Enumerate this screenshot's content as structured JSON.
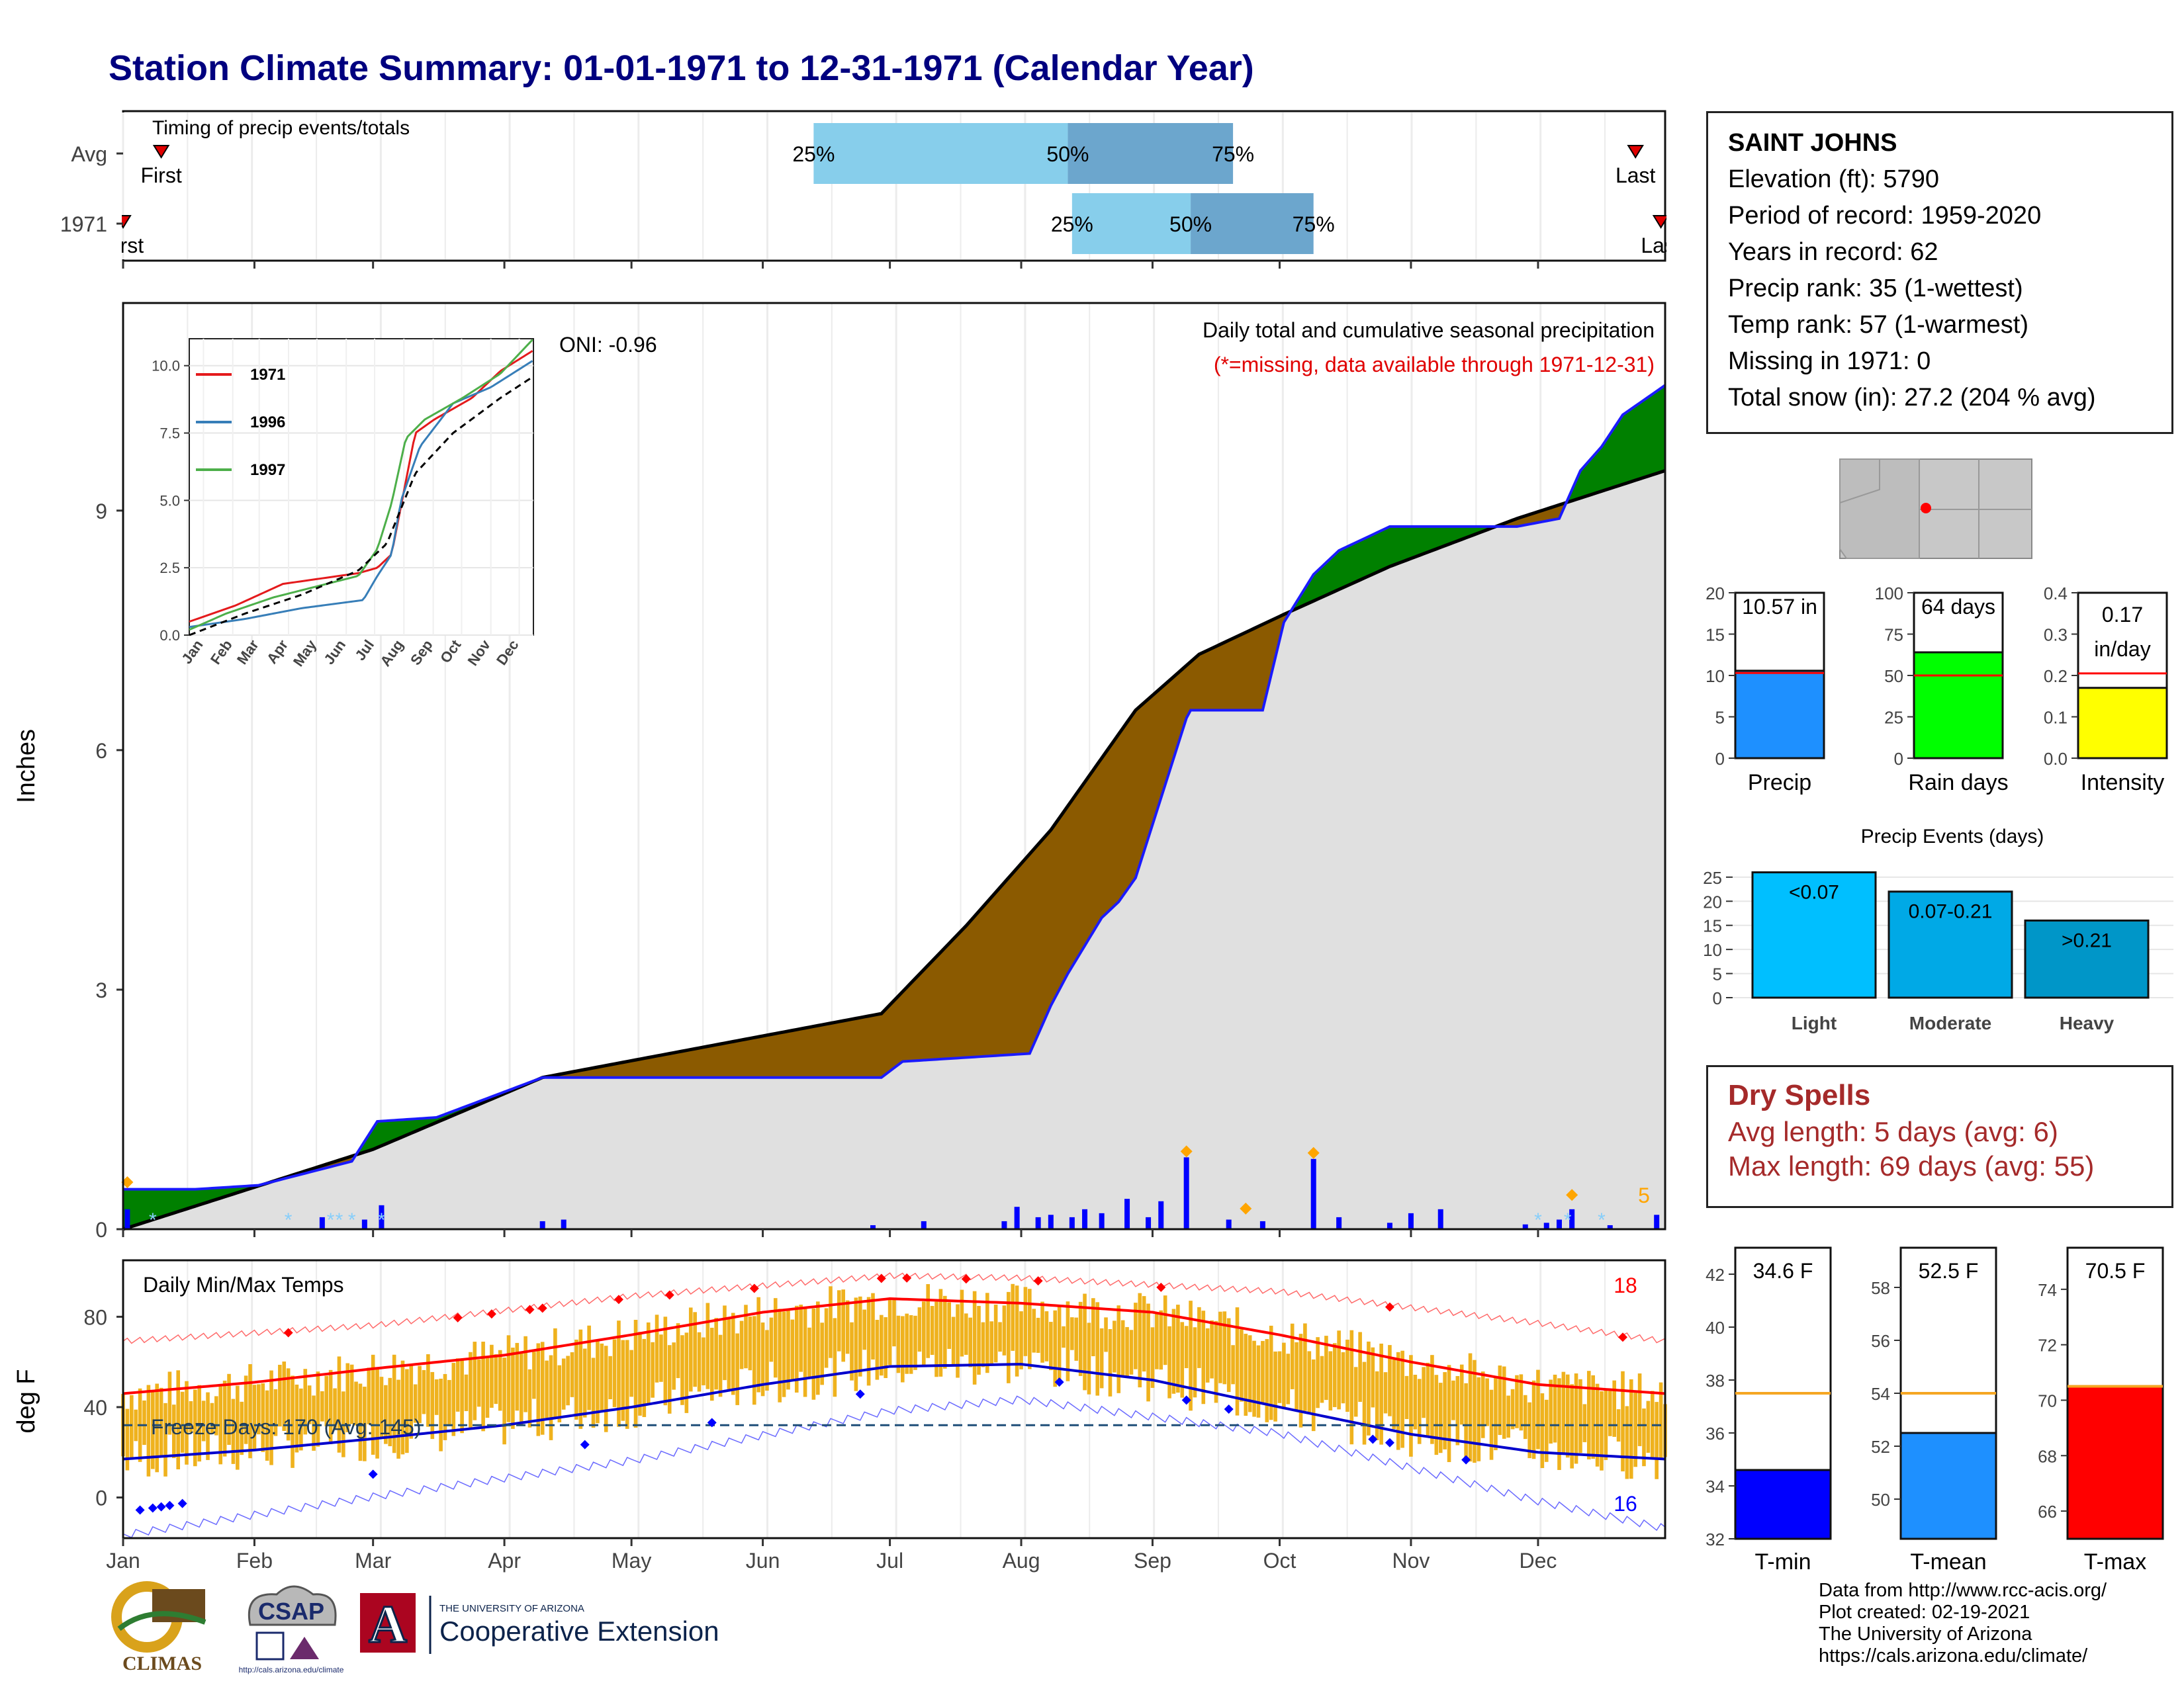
{
  "header": {
    "title": "Station Climate Summary: 01-01-1971 to 12-31-1971 (Calendar Year)"
  },
  "timing": {
    "title": "Timing of precip events/totals",
    "rows": [
      {
        "label": "Avg",
        "first_label": "First",
        "last_label": "Last",
        "first_doy": 10,
        "last_doy": 358,
        "p25": 164,
        "p50": 224,
        "p75": 263,
        "pct_labels": [
          "25%",
          "50%",
          "75%"
        ]
      },
      {
        "label": "1971",
        "first_label": "First",
        "last_label": "Last",
        "first_doy": 1,
        "last_doy": 364,
        "p25": 225,
        "p50": 253,
        "p75": 282,
        "pct_labels": [
          "25%",
          "50%",
          "75%"
        ]
      }
    ]
  },
  "info": {
    "station": "SAINT JOHNS",
    "lines": [
      "Elevation (ft): 5790",
      "Period of record: 1959-2020",
      "Years in record: 62",
      "Precip rank: 35 (1-wettest)",
      "Temp rank: 57 (1-warmest)",
      "Missing in 1971: 0",
      "Total snow (in): 27.2 (204 % avg)"
    ]
  },
  "precip_panel": {
    "ylabel": "Inches",
    "oni": "ONI: -0.96",
    "note1": "Daily total and cumulative seasonal precipitation",
    "note2": "(*=missing, data available through 1971-12-31)",
    "corner_label": "5",
    "yticks": [
      0,
      3,
      6,
      9
    ],
    "ylim": [
      0,
      11.6
    ]
  },
  "temp_panel": {
    "ylabel": "deg F",
    "title": "Daily Min/Max Temps",
    "freeze": "Freeze Days: 170 (Avg: 145)",
    "max_count": "18",
    "min_count": "16",
    "yticks": [
      0,
      40,
      80
    ],
    "ylim": [
      -18,
      105
    ]
  },
  "months": [
    "Jan",
    "Feb",
    "Mar",
    "Apr",
    "May",
    "Jun",
    "Jul",
    "Aug",
    "Sep",
    "Oct",
    "Nov",
    "Dec"
  ],
  "inset": {
    "yticks": [
      "0.0",
      "2.5",
      "5.0",
      "7.5",
      "10.0"
    ],
    "legend": [
      "1971",
      "1996",
      "1997"
    ],
    "colors": [
      "#e41a1c",
      "#377eb8",
      "#4daf4a"
    ]
  },
  "gauges": [
    {
      "label": "Precip",
      "value_label": "10.57 in",
      "value": 10.57,
      "avg": 10.3,
      "ymax": 20,
      "ticks": [
        "0",
        "5",
        "10",
        "15",
        "20"
      ],
      "color": "#1e90ff"
    },
    {
      "label": "Rain days",
      "value_label": "64 days",
      "value": 64,
      "avg": 50,
      "ymax": 100,
      "ticks": [
        "0",
        "25",
        "50",
        "75",
        "100"
      ],
      "color": "#00ff00"
    },
    {
      "label": "Intensity",
      "value_label": "0.17 in/day",
      "value": 0.17,
      "avg": 0.205,
      "ymax": 0.4,
      "ticks": [
        "0.0",
        "0.1",
        "0.2",
        "0.3",
        "0.4"
      ],
      "color": "#ffff00"
    }
  ],
  "events": {
    "title": "Precip Events (days)",
    "bars": [
      {
        "label": "Light",
        "tag": "<0.07",
        "value": 26,
        "color": "#00bfff"
      },
      {
        "label": "Moderate",
        "tag": "0.07-0.21",
        "value": 22,
        "color": "#00a9e6"
      },
      {
        "label": "Heavy",
        "tag": ">0.21",
        "value": 16,
        "color": "#0096c8"
      }
    ],
    "ticks": [
      "0",
      "5",
      "10",
      "15",
      "20",
      "25"
    ]
  },
  "dry": {
    "title": "Dry Spells",
    "avg": "Avg length: 5 days (avg: 6)",
    "max": "Max length: 69 days (avg: 55)"
  },
  "temp_gauges": [
    {
      "label": "T-min",
      "value_label": "34.6 F",
      "value": 34.6,
      "avg": 37.5,
      "ymin": 32,
      "ymax": 43,
      "ticks": [
        "32",
        "34",
        "36",
        "38",
        "40",
        "42"
      ],
      "color": "#0000ff"
    },
    {
      "label": "T-mean",
      "value_label": "52.5 F",
      "value": 52.5,
      "avg": 54.0,
      "ymin": 48.5,
      "ymax": 59.5,
      "ticks": [
        "50",
        "52",
        "54",
        "56",
        "58"
      ],
      "color": "#1e90ff"
    },
    {
      "label": "T-max",
      "value_label": "70.5 F",
      "value": 70.5,
      "avg": 70.5,
      "ymin": 65,
      "ymax": 75.5,
      "ticks": [
        "66",
        "68",
        "70",
        "72",
        "74"
      ],
      "color": "#ff0000"
    }
  ],
  "credits": [
    "Data from http://www.rcc-acis.org/",
    "Plot created: 02-19-2021",
    "The University of Arizona",
    "https://cals.arizona.edu/climate/"
  ],
  "logos": {
    "climas": "CLIMAS",
    "csap": "CSAP",
    "csap_url": "http://cals.arizona.edu/climate",
    "ua_small": "THE UNIVERSITY OF ARIZONA",
    "ua_big": "Cooperative Extension",
    "ua_letter": "A"
  },
  "chart_data": [
    {
      "type": "area",
      "title": "Daily total and cumulative seasonal precipitation",
      "ylabel": "Inches",
      "ylim": [
        0,
        11.6
      ],
      "series": [
        {
          "name": "1971",
          "knots_doy": [
            1,
            18,
            33,
            55,
            61,
            75,
            100,
            120,
            150,
            180,
            185,
            215,
            220,
            224,
            232,
            236,
            240,
            252,
            253,
            262,
            270,
            275,
            282,
            288,
            300,
            330,
            340,
            345,
            350,
            355,
            365
          ],
          "knots_value": [
            0.5,
            0.5,
            0.55,
            0.85,
            1.35,
            1.4,
            1.9,
            1.9,
            1.9,
            1.9,
            2.1,
            2.2,
            2.8,
            3.2,
            3.9,
            4.1,
            4.4,
            6.4,
            6.5,
            6.5,
            6.5,
            7.6,
            8.2,
            8.5,
            8.8,
            8.8,
            8.9,
            9.5,
            9.8,
            10.2,
            10.57
          ]
        },
        {
          "name": "Avg",
          "knots_doy": [
            1,
            60,
            100,
            150,
            180,
            200,
            220,
            240,
            255,
            275,
            300,
            330,
            365
          ],
          "knots_value": [
            0.0,
            1.0,
            1.9,
            2.4,
            2.7,
            3.8,
            5.0,
            6.5,
            7.2,
            7.7,
            8.3,
            8.9,
            9.5
          ]
        }
      ],
      "daily_bars": [
        {
          "doy": 2,
          "value": 0.25
        },
        {
          "doy": 48,
          "value": 0.15
        },
        {
          "doy": 58,
          "value": 0.12
        },
        {
          "doy": 62,
          "value": 0.3
        },
        {
          "doy": 100,
          "value": 0.1
        },
        {
          "doy": 105,
          "value": 0.12
        },
        {
          "doy": 178,
          "value": 0.05
        },
        {
          "doy": 190,
          "value": 0.1
        },
        {
          "doy": 209,
          "value": 0.1
        },
        {
          "doy": 212,
          "value": 0.28
        },
        {
          "doy": 217,
          "value": 0.15
        },
        {
          "doy": 220,
          "value": 0.18
        },
        {
          "doy": 225,
          "value": 0.15
        },
        {
          "doy": 228,
          "value": 0.25
        },
        {
          "doy": 232,
          "value": 0.2
        },
        {
          "doy": 238,
          "value": 0.38
        },
        {
          "doy": 243,
          "value": 0.15
        },
        {
          "doy": 246,
          "value": 0.35
        },
        {
          "doy": 252,
          "value": 0.9
        },
        {
          "doy": 262,
          "value": 0.12
        },
        {
          "doy": 270,
          "value": 0.1
        },
        {
          "doy": 282,
          "value": 0.88
        },
        {
          "doy": 288,
          "value": 0.15
        },
        {
          "doy": 300,
          "value": 0.08
        },
        {
          "doy": 305,
          "value": 0.2
        },
        {
          "doy": 312,
          "value": 0.25
        },
        {
          "doy": 332,
          "value": 0.06
        },
        {
          "doy": 337,
          "value": 0.08
        },
        {
          "doy": 340,
          "value": 0.12
        },
        {
          "doy": 343,
          "value": 0.25
        },
        {
          "doy": 352,
          "value": 0.05
        },
        {
          "doy": 363,
          "value": 0.18
        }
      ]
    },
    {
      "type": "line",
      "title": "Daily Min/Max Temps",
      "ylabel": "deg F",
      "ylim": [
        -18,
        105
      ],
      "series": [
        {
          "name": "Avg max",
          "knots_doy": [
            1,
            32,
            60,
            91,
            121,
            152,
            182,
            213,
            244,
            274,
            305,
            335,
            365
          ],
          "knots_value": [
            46,
            51,
            57,
            63,
            72,
            82,
            88,
            86,
            82,
            72,
            60,
            50,
            46
          ]
        },
        {
          "name": "Avg min",
          "knots_doy": [
            1,
            32,
            60,
            91,
            121,
            152,
            182,
            213,
            244,
            274,
            305,
            335,
            365
          ],
          "knots_value": [
            17,
            21,
            26,
            32,
            40,
            50,
            58,
            59,
            52,
            40,
            28,
            20,
            17
          ]
        },
        {
          "name": "Record high",
          "knots_doy": [
            1,
            60,
            121,
            182,
            213,
            274,
            335,
            365
          ],
          "knots_value": [
            68,
            75,
            88,
            97,
            96,
            90,
            76,
            68
          ]
        },
        {
          "name": "Record low",
          "knots_doy": [
            1,
            60,
            121,
            182,
            213,
            274,
            335,
            365
          ],
          "knots_value": [
            -15,
            2,
            18,
            40,
            45,
            30,
            0,
            -12
          ]
        }
      ],
      "freeze_line": 32
    },
    {
      "type": "line",
      "title": "",
      "xlabel": "",
      "yticks": [
        0.0,
        2.5,
        5.0,
        7.5,
        10.0
      ],
      "ylim": [
        0,
        11
      ],
      "series": [
        {
          "name": "1971",
          "knots_doy": [
            1,
            50,
            100,
            180,
            200,
            215,
            225,
            240,
            260,
            300,
            330,
            365
          ],
          "knots_value": [
            0.5,
            1.1,
            1.9,
            2.3,
            2.5,
            3.0,
            4.8,
            7.5,
            8.0,
            8.8,
            9.8,
            10.57
          ]
        },
        {
          "name": "1996",
          "knots_doy": [
            1,
            60,
            120,
            185,
            200,
            215,
            225,
            245,
            280,
            320,
            365
          ],
          "knots_value": [
            0.3,
            0.6,
            1.0,
            1.3,
            2.2,
            3.0,
            5.0,
            7.0,
            8.6,
            9.2,
            10.2
          ]
        },
        {
          "name": "1997",
          "knots_doy": [
            1,
            40,
            90,
            180,
            200,
            215,
            230,
            250,
            290,
            330,
            365
          ],
          "knots_value": [
            0.2,
            0.8,
            1.4,
            2.2,
            3.2,
            4.9,
            7.3,
            8.0,
            8.8,
            9.7,
            11.0
          ]
        },
        {
          "name": "Avg",
          "knots_doy": [
            1,
            60,
            120,
            180,
            210,
            240,
            280,
            330,
            365
          ],
          "knots_value": [
            0.0,
            0.8,
            1.5,
            2.4,
            3.4,
            6.0,
            7.5,
            8.8,
            9.6
          ]
        }
      ]
    }
  ]
}
